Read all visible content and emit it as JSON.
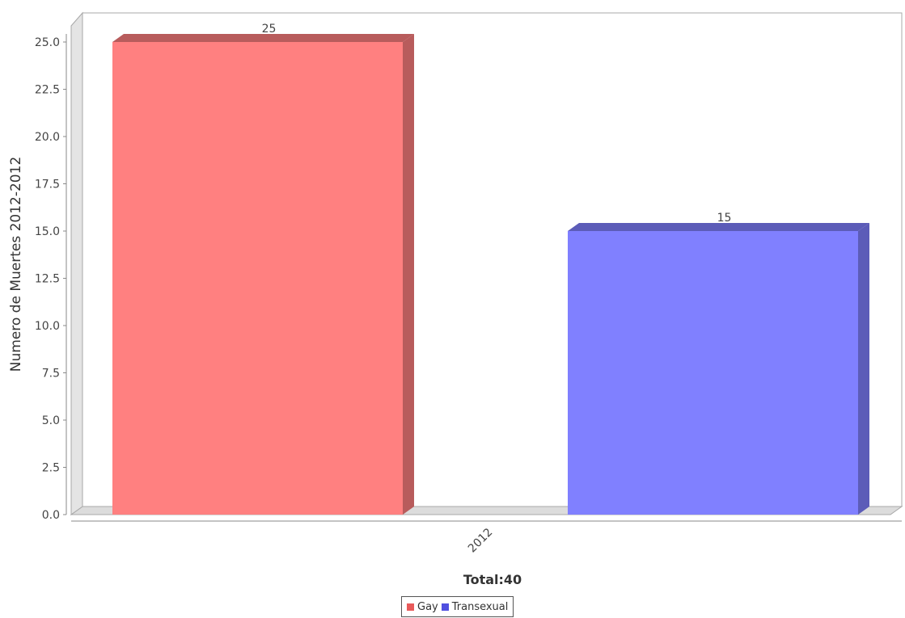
{
  "chart_data": {
    "type": "bar",
    "title": "",
    "xlabel": "Total:40",
    "ylabel": "Numero de Muertes 2012-2012",
    "categories": [
      "2012"
    ],
    "ylim": [
      0,
      25
    ],
    "yticks": [
      "0.0",
      "2.5",
      "5.0",
      "7.5",
      "10.0",
      "12.5",
      "15.0",
      "17.5",
      "20.0",
      "22.5",
      "25.0"
    ],
    "series": [
      {
        "name": "Gay",
        "values": [
          25
        ],
        "label": "25",
        "color": "#ff8080"
      },
      {
        "name": "Transexual",
        "values": [
          15
        ],
        "label": "15",
        "color": "#8080ff"
      }
    ],
    "legend_position": "bottom",
    "grid": false,
    "style": "3d"
  }
}
